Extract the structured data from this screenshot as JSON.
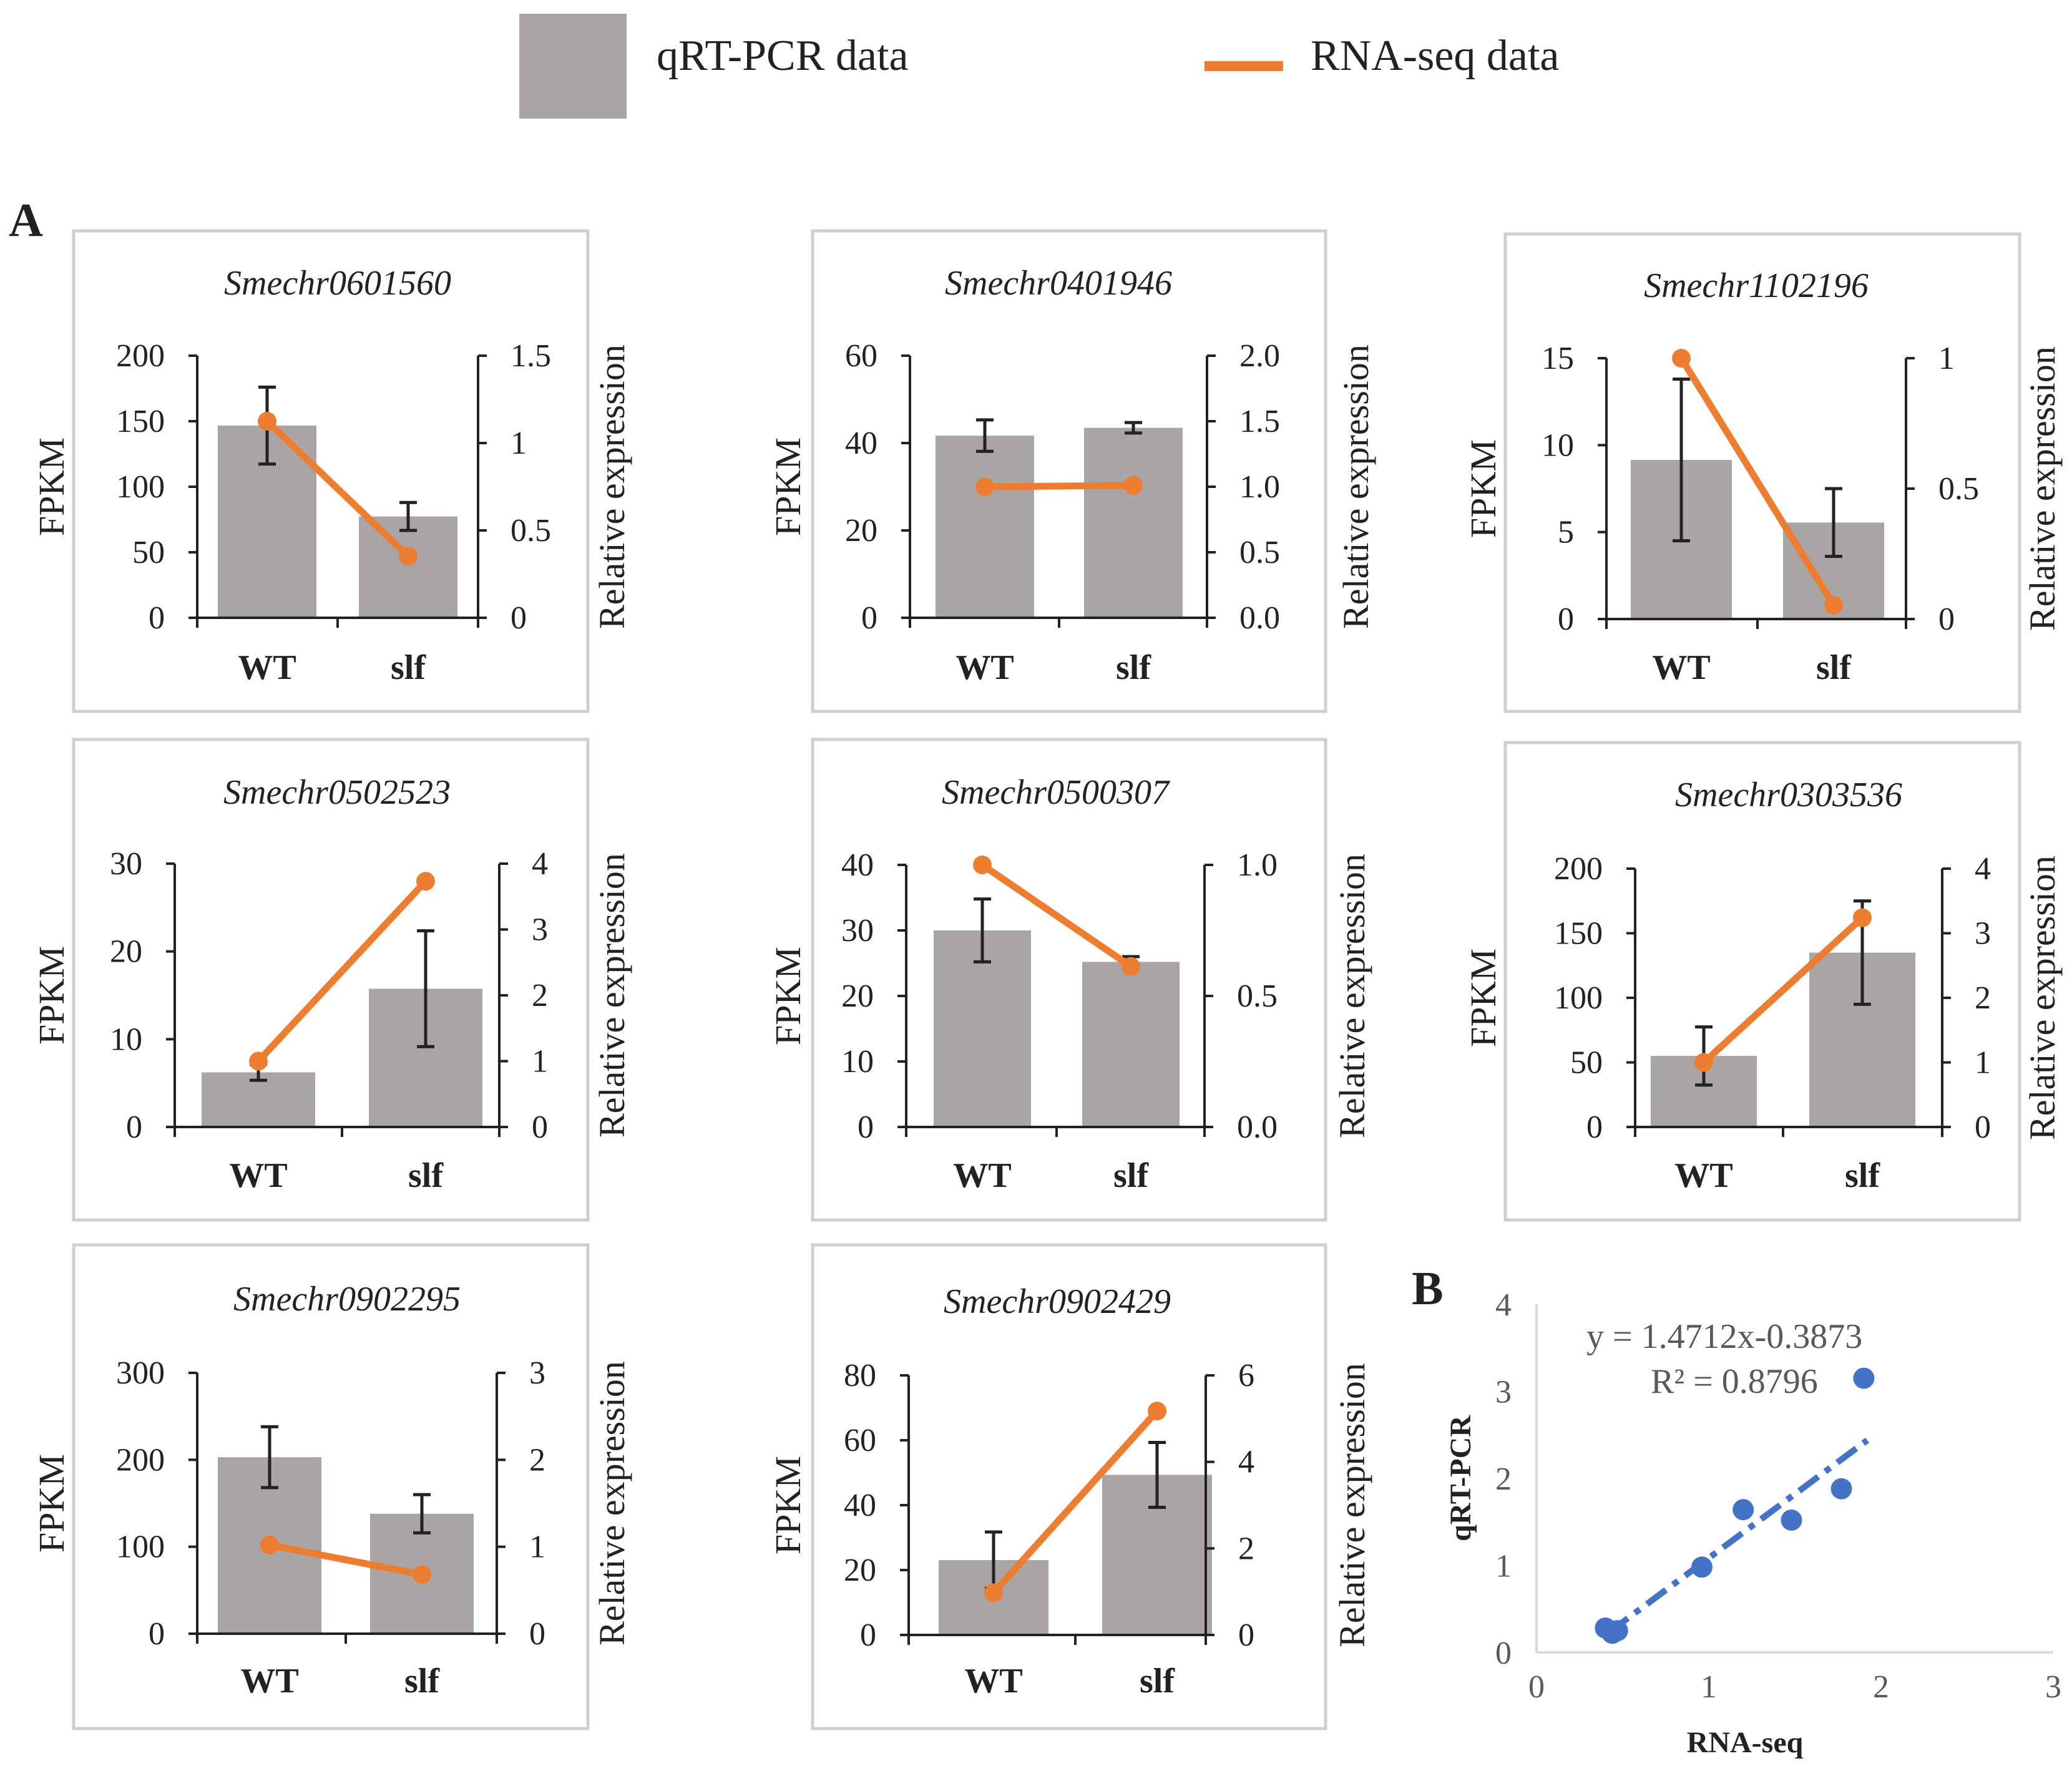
{
  "legend": {
    "bar_label": "qRT-PCR data",
    "line_label": "RNA-seq data"
  },
  "panel_labels": {
    "a": "A",
    "b": "B"
  },
  "colors": {
    "bar": "#a9a5a4",
    "line": "#ed7d31",
    "scatter": "#4472c4",
    "axis": "#222222",
    "frame": "#cfcfcf"
  },
  "chart_data": [
    {
      "type": "bar",
      "title": "Smechr0601560",
      "categories": [
        "WT",
        "slf"
      ],
      "ylabel": "FPKM",
      "y2label": "Relative expression",
      "ylim": [
        0,
        200
      ],
      "yticks": [
        "0",
        "50",
        "100",
        "150",
        "200"
      ],
      "y2lim": [
        0,
        1.5
      ],
      "y2ticks": [
        "0",
        "0.5",
        "1",
        "1.5"
      ],
      "series": [
        {
          "name": "qRT-PCR data",
          "axis": "right",
          "kind": "bar",
          "values": [
            1.1,
            0.58
          ],
          "errors": [
            0.22,
            0.08
          ]
        },
        {
          "name": "RNA-seq data",
          "axis": "left",
          "kind": "line",
          "values": [
            150,
            47
          ]
        }
      ]
    },
    {
      "type": "bar",
      "title": "Smechr0401946",
      "categories": [
        "WT",
        "slf"
      ],
      "ylabel": "FPKM",
      "y2label": "Relative expression",
      "ylim": [
        0,
        60
      ],
      "yticks": [
        "0",
        "20",
        "40",
        "60"
      ],
      "y2lim": [
        0,
        2.0
      ],
      "y2ticks": [
        "0.0",
        "0.5",
        "1.0",
        "1.5",
        "2.0"
      ],
      "series": [
        {
          "name": "qRT-PCR data",
          "axis": "right",
          "kind": "bar",
          "values": [
            1.39,
            1.45
          ],
          "errors": [
            0.12,
            0.04
          ]
        },
        {
          "name": "RNA-seq data",
          "axis": "left",
          "kind": "line",
          "values": [
            30,
            30.3
          ]
        }
      ]
    },
    {
      "type": "bar",
      "title": "Smechr1102196",
      "categories": [
        "WT",
        "slf"
      ],
      "ylabel": "FPKM",
      "y2label": "Relative expression",
      "ylim": [
        0,
        15
      ],
      "yticks": [
        "0",
        "5",
        "10",
        "15"
      ],
      "y2lim": [
        0,
        1
      ],
      "y2ticks": [
        "0",
        "0.5",
        "1"
      ],
      "series": [
        {
          "name": "qRT-PCR data",
          "axis": "right",
          "kind": "bar",
          "values": [
            0.61,
            0.37
          ],
          "errors": [
            0.31,
            0.13
          ]
        },
        {
          "name": "RNA-seq data",
          "axis": "left",
          "kind": "line",
          "values": [
            15,
            0.8
          ]
        }
      ]
    },
    {
      "type": "bar",
      "title": "Smechr0502523",
      "categories": [
        "WT",
        "slf"
      ],
      "ylabel": "FPKM",
      "y2label": "Relative expression",
      "ylim": [
        0,
        30
      ],
      "yticks": [
        "0",
        "10",
        "20",
        "30"
      ],
      "y2lim": [
        0,
        4
      ],
      "y2ticks": [
        "0",
        "1",
        "2",
        "3",
        "4"
      ],
      "series": [
        {
          "name": "qRT-PCR data",
          "axis": "right",
          "kind": "bar",
          "values": [
            0.83,
            2.1
          ],
          "errors": [
            0.12,
            0.88
          ]
        },
        {
          "name": "RNA-seq data",
          "axis": "left",
          "kind": "line",
          "values": [
            7.5,
            28
          ]
        }
      ]
    },
    {
      "type": "bar",
      "title": "Smechr0500307",
      "categories": [
        "WT",
        "slf"
      ],
      "ylabel": "FPKM",
      "y2label": "Relative expression",
      "ylim": [
        0,
        40
      ],
      "yticks": [
        "0",
        "10",
        "20",
        "30",
        "40"
      ],
      "y2lim": [
        0,
        1.0
      ],
      "y2ticks": [
        "0.0",
        "0.5",
        "1.0"
      ],
      "series": [
        {
          "name": "qRT-PCR data",
          "axis": "right",
          "kind": "bar",
          "values": [
            0.75,
            0.63
          ],
          "errors": [
            0.12,
            0.02
          ]
        },
        {
          "name": "RNA-seq data",
          "axis": "left",
          "kind": "line",
          "values": [
            40,
            24.5
          ]
        }
      ]
    },
    {
      "type": "bar",
      "title": "Smechr0303536",
      "categories": [
        "WT",
        "slf"
      ],
      "ylabel": "FPKM",
      "y2label": "Relative expression",
      "ylim": [
        0,
        200
      ],
      "yticks": [
        "0",
        "50",
        "100",
        "150",
        "200"
      ],
      "y2lim": [
        0,
        4
      ],
      "y2ticks": [
        "0",
        "1",
        "2",
        "3",
        "4"
      ],
      "series": [
        {
          "name": "qRT-PCR data",
          "axis": "right",
          "kind": "bar",
          "values": [
            1.1,
            2.7
          ],
          "errors": [
            0.45,
            0.8
          ]
        },
        {
          "name": "RNA-seq data",
          "axis": "left",
          "kind": "line",
          "values": [
            50,
            162
          ]
        }
      ]
    },
    {
      "type": "bar",
      "title": "Smechr0902295",
      "categories": [
        "WT",
        "slf"
      ],
      "ylabel": "FPKM",
      "y2label": "Relative expression",
      "ylim": [
        0,
        300
      ],
      "yticks": [
        "0",
        "100",
        "200",
        "300"
      ],
      "y2lim": [
        0,
        3
      ],
      "y2ticks": [
        "0",
        "1",
        "2",
        "3"
      ],
      "series": [
        {
          "name": "qRT-PCR data",
          "axis": "right",
          "kind": "bar",
          "values": [
            2.03,
            1.38
          ],
          "errors": [
            0.35,
            0.22
          ]
        },
        {
          "name": "RNA-seq data",
          "axis": "left",
          "kind": "line",
          "values": [
            102,
            68
          ]
        }
      ]
    },
    {
      "type": "bar",
      "title": "Smechr0902429",
      "categories": [
        "WT",
        "slf"
      ],
      "ylabel": "FPKM",
      "y2label": "Relative expression",
      "ylim": [
        0,
        80
      ],
      "yticks": [
        "0",
        "20",
        "40",
        "60",
        "80"
      ],
      "y2lim": [
        0,
        6
      ],
      "y2ticks": [
        "0",
        "2",
        "4",
        "6"
      ],
      "series": [
        {
          "name": "qRT-PCR data",
          "axis": "right",
          "kind": "bar",
          "values": [
            1.73,
            3.7
          ],
          "errors": [
            0.65,
            0.75
          ]
        },
        {
          "name": "RNA-seq data",
          "axis": "left",
          "kind": "line",
          "values": [
            13,
            69
          ]
        }
      ]
    },
    {
      "type": "scatter",
      "xlabel": "RNA-seq",
      "ylabel": "qRT-PCR",
      "xlim": [
        0,
        3
      ],
      "ylim": [
        0,
        4
      ],
      "xticks": [
        "0",
        "1",
        "2",
        "3"
      ],
      "yticks": [
        "0",
        "1",
        "2",
        "3",
        "4"
      ],
      "x": [
        0.4,
        0.44,
        0.47,
        0.96,
        1.2,
        1.48,
        1.77,
        1.9
      ],
      "y": [
        0.28,
        0.22,
        0.25,
        0.98,
        1.64,
        1.52,
        1.88,
        3.15
      ],
      "trendline": {
        "slope": 1.4712,
        "intercept": -0.3873,
        "x_range": [
          0.42,
          1.92
        ]
      },
      "equation": "y = 1.4712x-0.3873",
      "r2": "R² = 0.8796"
    }
  ]
}
